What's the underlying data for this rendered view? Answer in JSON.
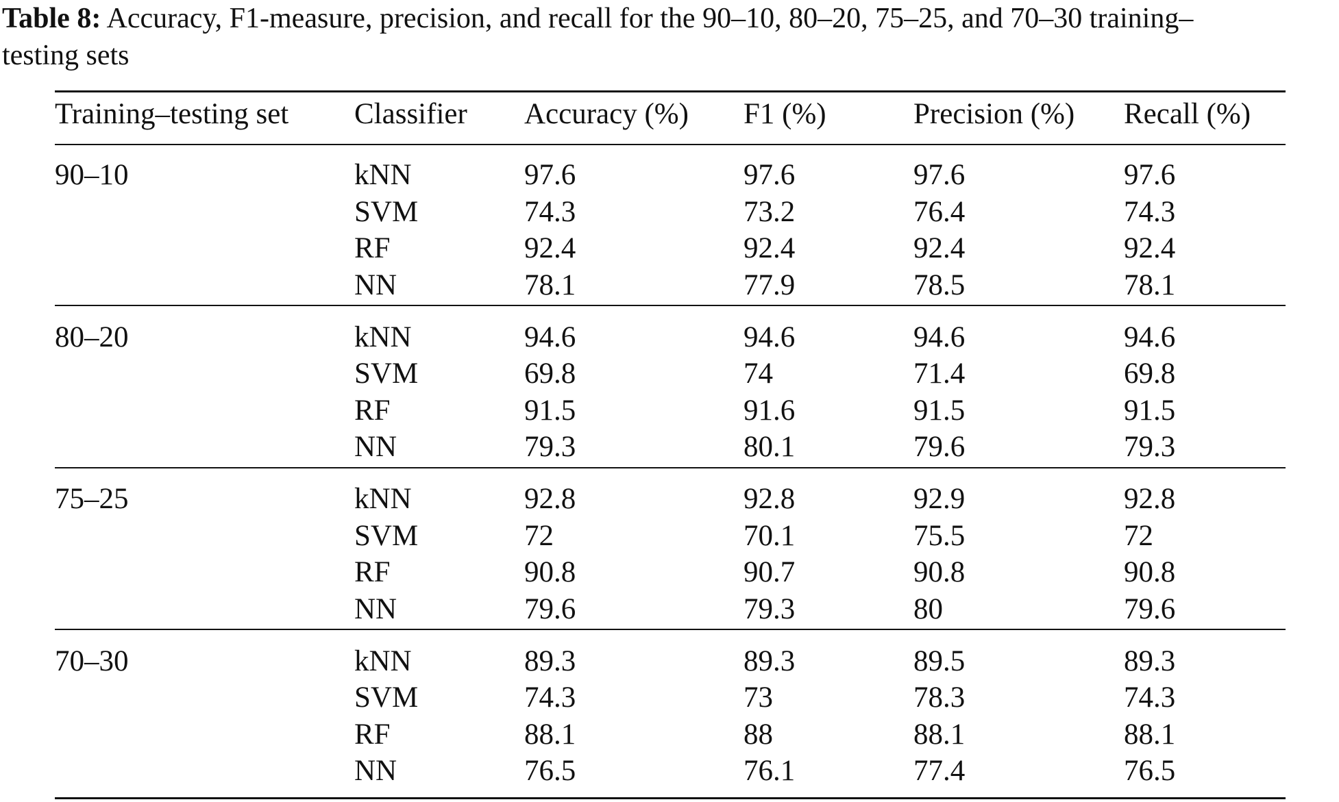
{
  "caption": {
    "label": "Table 8:",
    "text_line1": "Accuracy, F1-measure, precision, and recall for the 90–10, 80–20, 75–25, and 70–30 training–",
    "text_line2": "testing sets"
  },
  "table": {
    "headers": [
      "Training–testing set",
      "Classifier",
      "Accuracy (%)",
      "F1 (%)",
      "Precision (%)",
      "Recall (%)"
    ],
    "groups": [
      {
        "set": "90–10",
        "rows": [
          {
            "classifier": "kNN",
            "accuracy": "97.6",
            "f1": "97.6",
            "precision": "97.6",
            "recall": "97.6"
          },
          {
            "classifier": "SVM",
            "accuracy": "74.3",
            "f1": "73.2",
            "precision": "76.4",
            "recall": "74.3"
          },
          {
            "classifier": "RF",
            "accuracy": "92.4",
            "f1": "92.4",
            "precision": "92.4",
            "recall": "92.4"
          },
          {
            "classifier": "NN",
            "accuracy": "78.1",
            "f1": "77.9",
            "precision": "78.5",
            "recall": "78.1"
          }
        ]
      },
      {
        "set": "80–20",
        "rows": [
          {
            "classifier": "kNN",
            "accuracy": "94.6",
            "f1": "94.6",
            "precision": "94.6",
            "recall": "94.6"
          },
          {
            "classifier": "SVM",
            "accuracy": "69.8",
            "f1": "74",
            "precision": "71.4",
            "recall": "69.8"
          },
          {
            "classifier": "RF",
            "accuracy": "91.5",
            "f1": "91.6",
            "precision": "91.5",
            "recall": "91.5"
          },
          {
            "classifier": "NN",
            "accuracy": "79.3",
            "f1": "80.1",
            "precision": "79.6",
            "recall": "79.3"
          }
        ]
      },
      {
        "set": "75–25",
        "rows": [
          {
            "classifier": "kNN",
            "accuracy": "92.8",
            "f1": "92.8",
            "precision": "92.9",
            "recall": "92.8"
          },
          {
            "classifier": "SVM",
            "accuracy": "72",
            "f1": "70.1",
            "precision": "75.5",
            "recall": "72"
          },
          {
            "classifier": "RF",
            "accuracy": "90.8",
            "f1": "90.7",
            "precision": "90.8",
            "recall": "90.8"
          },
          {
            "classifier": "NN",
            "accuracy": "79.6",
            "f1": "79.3",
            "precision": "80",
            "recall": "79.6"
          }
        ]
      },
      {
        "set": "70–30",
        "rows": [
          {
            "classifier": "kNN",
            "accuracy": "89.3",
            "f1": "89.3",
            "precision": "89.5",
            "recall": "89.3"
          },
          {
            "classifier": "SVM",
            "accuracy": "74.3",
            "f1": "73",
            "precision": "78.3",
            "recall": "74.3"
          },
          {
            "classifier": "RF",
            "accuracy": "88.1",
            "f1": "88",
            "precision": "88.1",
            "recall": "88.1"
          },
          {
            "classifier": "NN",
            "accuracy": "76.5",
            "f1": "76.1",
            "precision": "77.4",
            "recall": "76.5"
          }
        ]
      }
    ]
  }
}
